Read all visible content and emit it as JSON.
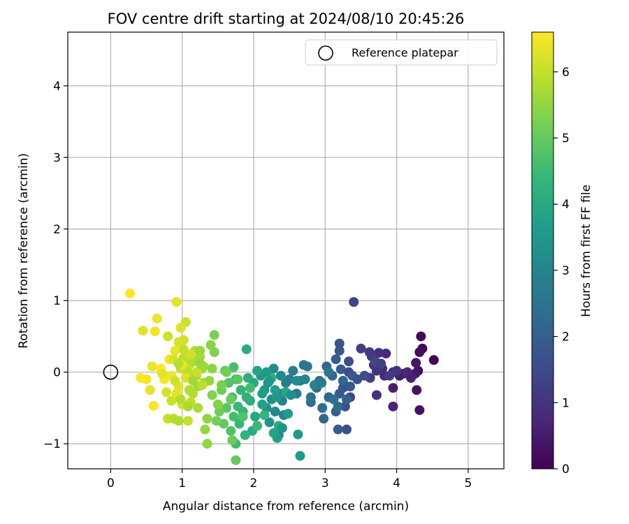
{
  "chart_data": {
    "type": "scatter",
    "title": "FOV centre drift starting at 2024/08/10 20:45:26",
    "xlabel": "Angular distance from reference (arcmin)",
    "ylabel": "Rotation from reference (arcmin)",
    "xlim": [
      -0.6,
      5.5
    ],
    "ylim": [
      -1.35,
      4.75
    ],
    "xticks": [
      "0",
      "1",
      "2",
      "3",
      "4",
      "5"
    ],
    "yticks": [
      "−1",
      "0",
      "1",
      "2",
      "3",
      "4"
    ],
    "grid": true,
    "legend": {
      "placement": "top-right",
      "entries": [
        "Reference platepar"
      ]
    },
    "reference_point": {
      "x": 0,
      "y": 0
    },
    "colorbar": {
      "label": "Hours from first FF file",
      "range": [
        0,
        6.6
      ],
      "ticks": [
        "0",
        "1",
        "2",
        "3",
        "4",
        "5",
        "6"
      ],
      "colormap": "viridis",
      "stops": [
        "#440154",
        "#482878",
        "#3e4989",
        "#31688e",
        "#26828e",
        "#1f9e89",
        "#35b779",
        "#6ece58",
        "#b5de2b",
        "#fde725"
      ]
    },
    "points": [
      [
        4.52,
        0.17,
        0.05
      ],
      [
        4.36,
        0.33,
        0.1
      ],
      [
        4.34,
        0.5,
        0.15
      ],
      [
        4.32,
        0.28,
        0.2
      ],
      [
        4.3,
        0.02,
        0.25
      ],
      [
        4.32,
        -0.53,
        0.3
      ],
      [
        4.28,
        -0.25,
        0.35
      ],
      [
        4.27,
        0.13,
        0.4
      ],
      [
        4.26,
        -0.02,
        0.45
      ],
      [
        4.1,
        -0.02,
        0.5
      ],
      [
        4.04,
        -0.05,
        0.55
      ],
      [
        3.95,
        -0.22,
        0.6
      ],
      [
        3.95,
        -0.48,
        0.65
      ],
      [
        3.95,
        0.0,
        0.7
      ],
      [
        3.85,
        0.26,
        0.75
      ],
      [
        3.83,
        -0.05,
        0.8
      ],
      [
        3.8,
        0.05,
        0.85
      ],
      [
        3.75,
        0.27,
        0.9
      ],
      [
        3.72,
        -0.32,
        0.95
      ],
      [
        3.72,
        0.02,
        1.0
      ],
      [
        3.68,
        0.1,
        1.05
      ],
      [
        3.65,
        0.22,
        1.1
      ],
      [
        3.62,
        0.28,
        1.15
      ],
      [
        3.63,
        -0.08,
        1.2
      ],
      [
        3.5,
        0.33,
        1.25
      ],
      [
        3.4,
        0.98,
        1.35
      ],
      [
        3.35,
        -0.35,
        1.4
      ],
      [
        3.33,
        0.0,
        1.5
      ],
      [
        3.33,
        0.15,
        1.55
      ],
      [
        3.28,
        -0.48,
        1.6
      ],
      [
        3.3,
        -0.8,
        1.65
      ],
      [
        3.25,
        -0.22,
        1.7
      ],
      [
        3.2,
        0.4,
        1.75
      ],
      [
        3.2,
        0.3,
        1.8
      ],
      [
        3.22,
        0.04,
        1.85
      ],
      [
        3.2,
        -0.3,
        1.9
      ],
      [
        3.18,
        -0.8,
        1.95
      ],
      [
        3.15,
        0.18,
        2.0
      ],
      [
        3.15,
        -0.55,
        2.05
      ],
      [
        3.1,
        -0.05,
        2.1
      ],
      [
        3.05,
        -0.35,
        2.15
      ],
      [
        3.02,
        0.08,
        2.2
      ],
      [
        2.98,
        -0.65,
        2.25
      ],
      [
        2.96,
        -0.5,
        2.3
      ],
      [
        2.92,
        -0.12,
        2.35
      ],
      [
        2.88,
        -0.22,
        2.4
      ],
      [
        2.8,
        -0.42,
        2.45
      ],
      [
        2.8,
        -0.35,
        2.5
      ],
      [
        2.75,
        0.08,
        2.55
      ],
      [
        2.7,
        0.1,
        2.6
      ],
      [
        2.65,
        -0.12,
        2.65
      ],
      [
        2.6,
        -0.3,
        2.7
      ],
      [
        2.55,
        0.02,
        2.75
      ],
      [
        2.5,
        -0.1,
        2.8
      ],
      [
        2.45,
        -0.15,
        2.85
      ],
      [
        2.4,
        -0.4,
        2.9
      ],
      [
        2.42,
        -0.6,
        2.95
      ],
      [
        2.4,
        -0.3,
        3.0
      ],
      [
        2.38,
        -0.05,
        3.05
      ],
      [
        2.35,
        -0.88,
        3.1
      ],
      [
        2.3,
        -0.55,
        3.15
      ],
      [
        2.28,
        0.05,
        3.2
      ],
      [
        2.25,
        -0.38,
        3.25
      ],
      [
        2.22,
        -0.7,
        3.3
      ],
      [
        2.2,
        -0.15,
        3.35
      ],
      [
        2.18,
        -0.5,
        3.4
      ],
      [
        2.15,
        -0.25,
        3.45
      ],
      [
        2.1,
        -0.05,
        3.5
      ],
      [
        2.62,
        -0.87,
        3.55
      ],
      [
        2.65,
        -1.17,
        3.6
      ],
      [
        2.48,
        -0.58,
        3.65
      ],
      [
        2.33,
        -0.92,
        3.7
      ],
      [
        2.3,
        -0.25,
        3.75
      ],
      [
        2.12,
        -0.45,
        3.8
      ],
      [
        2.05,
        0.02,
        3.85
      ],
      [
        2.02,
        -0.62,
        3.9
      ],
      [
        2.0,
        -0.15,
        3.95
      ],
      [
        1.98,
        -0.82,
        4.0
      ],
      [
        1.95,
        -0.4,
        4.05
      ],
      [
        1.9,
        0.32,
        4.1
      ],
      [
        1.92,
        -0.08,
        4.15
      ],
      [
        1.9,
        -0.35,
        4.2
      ],
      [
        1.88,
        -0.88,
        4.25
      ],
      [
        1.85,
        -0.55,
        4.3
      ],
      [
        1.82,
        -0.25,
        4.35
      ],
      [
        1.8,
        -0.72,
        4.4
      ],
      [
        1.78,
        -0.48,
        4.45
      ],
      [
        1.75,
        -0.1,
        4.5
      ],
      [
        1.75,
        -1.0,
        4.55
      ],
      [
        1.72,
        -0.62,
        4.6
      ],
      [
        1.72,
        0.07,
        4.65
      ],
      [
        1.7,
        -0.35,
        4.7
      ],
      [
        1.68,
        -0.82,
        4.75
      ],
      [
        1.65,
        -0.15,
        4.8
      ],
      [
        1.62,
        -0.5,
        4.85
      ],
      [
        1.6,
        0.02,
        4.9
      ],
      [
        1.58,
        -0.72,
        4.95
      ],
      [
        1.75,
        -1.23,
        5.0
      ],
      [
        1.7,
        -0.95,
        5.05
      ],
      [
        1.55,
        -0.25,
        5.1
      ],
      [
        1.52,
        -0.55,
        5.15
      ],
      [
        1.48,
        -0.68,
        5.2
      ],
      [
        1.45,
        0.52,
        5.25
      ],
      [
        1.45,
        0.28,
        5.3
      ],
      [
        1.42,
        -0.32,
        5.35
      ],
      [
        1.4,
        0.38,
        5.4
      ],
      [
        1.35,
        -0.65,
        5.45
      ],
      [
        1.35,
        -1.0,
        5.5
      ],
      [
        1.32,
        -0.8,
        5.55
      ],
      [
        1.3,
        -0.15,
        5.6
      ],
      [
        1.28,
        0.05,
        5.65
      ],
      [
        1.25,
        0.22,
        5.7
      ],
      [
        1.22,
        -0.5,
        5.75
      ],
      [
        1.2,
        -0.05,
        5.8
      ],
      [
        1.18,
        0.3,
        5.85
      ],
      [
        1.15,
        -0.3,
        5.9
      ],
      [
        1.12,
        -0.42,
        5.95
      ],
      [
        1.1,
        0.1,
        6.0
      ],
      [
        1.08,
        -0.68,
        6.05
      ],
      [
        1.05,
        0.7,
        6.1
      ],
      [
        1.02,
        0.45,
        6.15
      ],
      [
        1.0,
        -0.45,
        6.2
      ],
      [
        0.98,
        0.62,
        6.25
      ],
      [
        0.95,
        -0.2,
        6.3
      ],
      [
        0.92,
        0.98,
        6.35
      ],
      [
        0.9,
        0.3,
        6.4
      ],
      [
        0.85,
        -0.05,
        6.45
      ],
      [
        0.82,
        0.18,
        6.5
      ],
      [
        0.75,
        -0.1,
        6.55
      ],
      [
        0.7,
        0.05,
        6.6
      ],
      [
        0.65,
        0.75,
        6.45
      ],
      [
        0.62,
        0.57,
        6.5
      ],
      [
        0.6,
        -0.47,
        6.55
      ],
      [
        0.58,
        0.08,
        6.4
      ],
      [
        0.55,
        -0.25,
        6.35
      ],
      [
        0.5,
        -0.1,
        6.5
      ],
      [
        0.45,
        0.58,
        6.3
      ],
      [
        0.42,
        -0.08,
        6.55
      ],
      [
        0.27,
        1.1,
        6.6
      ],
      [
        0.8,
        -0.65,
        6.0
      ],
      [
        0.88,
        -0.65,
        5.9
      ],
      [
        0.95,
        -0.68,
        5.8
      ],
      [
        0.8,
        0.5,
        6.1
      ],
      [
        0.95,
        0.42,
        6.2
      ],
      [
        1.02,
        0.2,
        5.95
      ],
      [
        1.08,
        0.0,
        5.9
      ],
      [
        1.15,
        0.15,
        5.8
      ],
      [
        1.22,
        -0.2,
        5.7
      ],
      [
        1.25,
        0.3,
        5.6
      ],
      [
        0.78,
        -0.28,
        6.2
      ],
      [
        0.72,
        -0.02,
        6.3
      ],
      [
        0.85,
        -0.4,
        6.05
      ],
      [
        0.9,
        -0.12,
        6.1
      ],
      [
        0.98,
        0.05,
        6.0
      ],
      [
        1.1,
        -0.25,
        5.85
      ],
      [
        1.18,
        -0.05,
        5.75
      ],
      [
        1.3,
        0.08,
        5.65
      ],
      [
        1.38,
        -0.12,
        5.55
      ],
      [
        1.42,
        0.05,
        5.45
      ],
      [
        1.5,
        -0.45,
        5.35
      ],
      [
        1.55,
        -0.18,
        5.25
      ],
      [
        1.62,
        0.0,
        5.15
      ],
      [
        1.68,
        -0.38,
        5.05
      ],
      [
        1.78,
        -0.1,
        4.9
      ],
      [
        1.85,
        -0.62,
        4.75
      ],
      [
        1.95,
        -0.22,
        4.6
      ],
      [
        2.05,
        -0.75,
        4.45
      ],
      [
        2.15,
        -0.6,
        4.3
      ],
      [
        2.25,
        -0.08,
        4.2
      ],
      [
        2.35,
        -0.75,
        4.05
      ],
      [
        2.45,
        -0.28,
        3.9
      ],
      [
        2.28,
        -0.85,
        3.85
      ],
      [
        2.12,
        -0.3,
        3.7
      ],
      [
        2.18,
        0.0,
        3.6
      ],
      [
        2.22,
        -0.12,
        3.55
      ],
      [
        2.32,
        -0.35,
        3.5
      ],
      [
        2.4,
        -0.78,
        3.4
      ],
      [
        2.52,
        -0.32,
        3.3
      ],
      [
        2.6,
        -0.12,
        3.2
      ],
      [
        2.72,
        -0.1,
        3.05
      ],
      [
        2.85,
        -0.18,
        2.9
      ],
      [
        2.95,
        -0.15,
        2.75
      ],
      [
        3.05,
        0.0,
        2.6
      ],
      [
        3.12,
        -0.38,
        2.45
      ],
      [
        3.18,
        -0.48,
        2.3
      ],
      [
        3.25,
        -0.12,
        2.15
      ],
      [
        3.3,
        -0.38,
        2.05
      ],
      [
        3.35,
        -0.2,
        1.9
      ],
      [
        3.38,
        -0.05,
        1.8
      ],
      [
        3.45,
        -0.1,
        1.7
      ],
      [
        3.55,
        -0.05,
        1.55
      ],
      [
        3.7,
        0.15,
        1.4
      ],
      [
        3.78,
        0.12,
        1.3
      ],
      [
        3.9,
        -0.05,
        1.2
      ],
      [
        4.0,
        0.02,
        1.0
      ],
      [
        4.15,
        0.0,
        0.8
      ],
      [
        4.2,
        -0.08,
        0.6
      ],
      [
        1.0,
        0.1,
        6.4
      ],
      [
        1.05,
        -0.08,
        6.3
      ],
      [
        0.92,
        -0.3,
        6.35
      ],
      [
        0.88,
        0.18,
        6.25
      ],
      [
        1.12,
        0.25,
        6.15
      ],
      [
        1.2,
        0.0,
        6.05
      ],
      [
        1.28,
        -0.18,
        5.95
      ],
      [
        1.02,
        0.32,
        6.0
      ],
      [
        0.95,
        0.12,
        5.9
      ],
      [
        0.98,
        -0.38,
        5.85
      ],
      [
        1.08,
        -0.48,
        5.75
      ],
      [
        1.15,
        -0.12,
        5.7
      ],
      [
        1.25,
        0.12,
        5.55
      ]
    ]
  },
  "colors": {
    "axes": "#000000",
    "grid": "#b0b0b0",
    "legend_border": "#cccccc",
    "marker_edge": "#000000"
  }
}
